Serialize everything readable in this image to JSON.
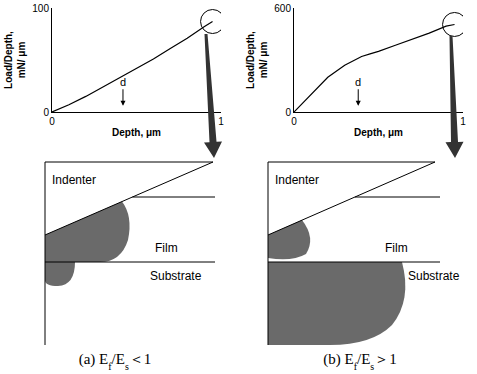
{
  "chart_data": [
    {
      "type": "line",
      "color": "#000000",
      "x": [
        0,
        0.1,
        0.2,
        0.3,
        0.4,
        0.5,
        0.6,
        0.7,
        0.8,
        0.9,
        0.95
      ],
      "values": [
        0,
        7,
        15,
        24,
        33,
        42,
        51,
        61,
        71,
        82,
        87
      ],
      "xlabel": "Depth, μm",
      "ylabel": "Load/Depth, mN/ μm",
      "xlim": [
        0,
        1
      ],
      "xticks": [
        0,
        1
      ],
      "ylim": [
        0,
        100
      ],
      "yticks": [
        0,
        100
      ],
      "annotations": [
        {
          "text": "d",
          "x": 0.42
        }
      ],
      "grid": false
    },
    {
      "type": "line",
      "color": "#000000",
      "x": [
        0,
        0.05,
        0.1,
        0.2,
        0.3,
        0.4,
        0.45,
        0.5,
        0.6,
        0.7,
        0.8,
        0.9,
        0.95
      ],
      "values": [
        0,
        50,
        105,
        200,
        270,
        320,
        335,
        350,
        385,
        420,
        455,
        495,
        505
      ],
      "xlabel": "Depth, μm",
      "ylabel": "Load/Depth, mN/ μm",
      "xlim": [
        0,
        1
      ],
      "xticks": [
        0,
        1
      ],
      "ylim": [
        0,
        600
      ],
      "yticks": [
        0,
        600
      ],
      "annotations": [
        {
          "text": "d",
          "x": 0.38
        }
      ],
      "grid": false
    }
  ],
  "diagrams": [
    {
      "labels": {
        "indenter": "Indenter",
        "film": "Film",
        "substrate": "Substrate"
      },
      "caption": [
        {
          "text": "(a) E"
        },
        {
          "text": "f",
          "sub": true
        },
        {
          "text": "/E"
        },
        {
          "text": "s",
          "sub": true
        },
        {
          "text": "＜1"
        }
      ]
    },
    {
      "labels": {
        "indenter": "Indenter",
        "film": "Film",
        "substrate": "Substrate"
      },
      "caption": [
        {
          "text": "(b) E"
        },
        {
          "text": "f",
          "sub": true
        },
        {
          "text": "/E"
        },
        {
          "text": "s",
          "sub": true
        },
        {
          "text": "＞1"
        }
      ]
    }
  ]
}
